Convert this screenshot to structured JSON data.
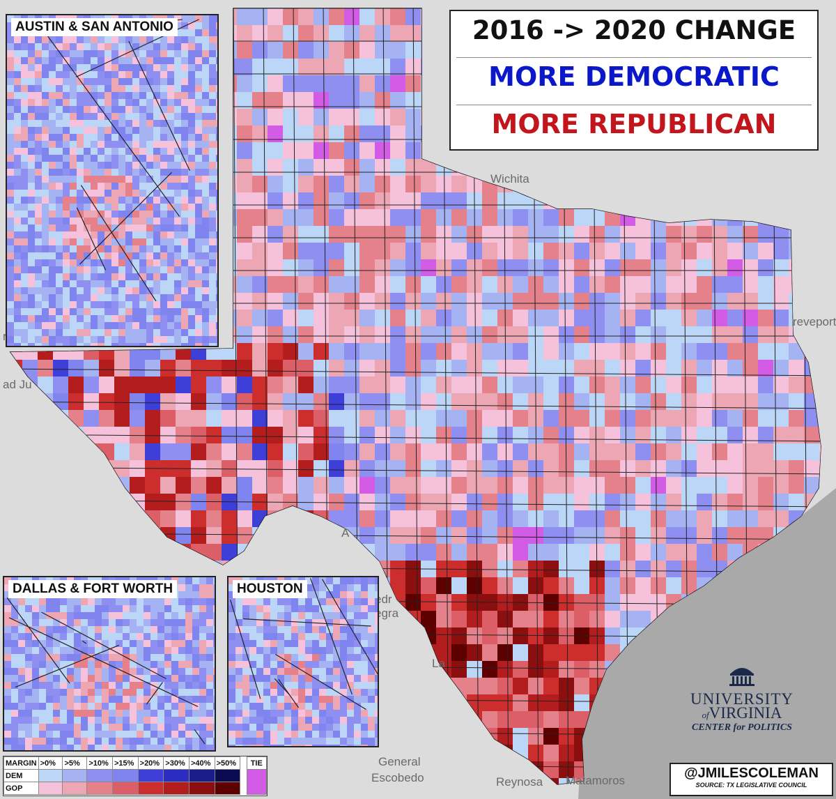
{
  "title": {
    "line1": "2016 -> 2020 CHANGE",
    "line2": "MORE DEMOCRATIC",
    "line3": "MORE REPUBLICAN"
  },
  "colors": {
    "dem": [
      "#bcd6f7",
      "#a6b3f2",
      "#8e8ff0",
      "#7f84ef",
      "#3d3fd8",
      "#2a2dc0",
      "#1c1d8c",
      "#0b0b52"
    ],
    "gop": [
      "#f6c2db",
      "#eda7b4",
      "#e4818b",
      "#dc5e66",
      "#cc2d2d",
      "#b31d1d",
      "#8c0f0f",
      "#5c0000"
    ],
    "tie": "#d35ce6",
    "county_line": "#222222",
    "basemap": "#dcdcdc",
    "gulf": "#a9a9a9"
  },
  "insets": {
    "austin_san_antonio": "AUSTIN & SAN ANTONIO",
    "dallas_fort_worth": "DALLAS & FORT WORTH",
    "houston": "HOUSTON"
  },
  "basemap_labels": {
    "wichita": "Wichita",
    "shreveport": "reveport",
    "las_cruces": "ruces",
    "ciudad_juarez": "ad Ju",
    "piedras_negras": "edr",
    "nuevo_laredo": "egra",
    "general_escobedo_1": "General",
    "general_escobedo_2": "Escobedo",
    "reynosa": "Reynosa",
    "matamoros": "Matamoros",
    "laredo_fragment": "La",
    "del_rio_fragment": "A"
  },
  "legend": {
    "margin_label": "MARGIN",
    "thresholds": [
      ">0%",
      ">5%",
      ">10%",
      ">15%",
      ">20%",
      ">30%",
      ">40%",
      ">50%"
    ],
    "tie_label": "TIE",
    "dem_label": "DEM",
    "gop_label": "GOP"
  },
  "credit": {
    "handle": "@JMILESCOLEMAN",
    "source": "SOURCE: TX LEGISLATIVE COUNCIL"
  },
  "logo": {
    "line1": "UNIVERSITY",
    "line2_prefix": "of",
    "line2": "VIRGINIA",
    "line3": "CENTER for POLITICS",
    "icon": "rotunda-icon"
  }
}
